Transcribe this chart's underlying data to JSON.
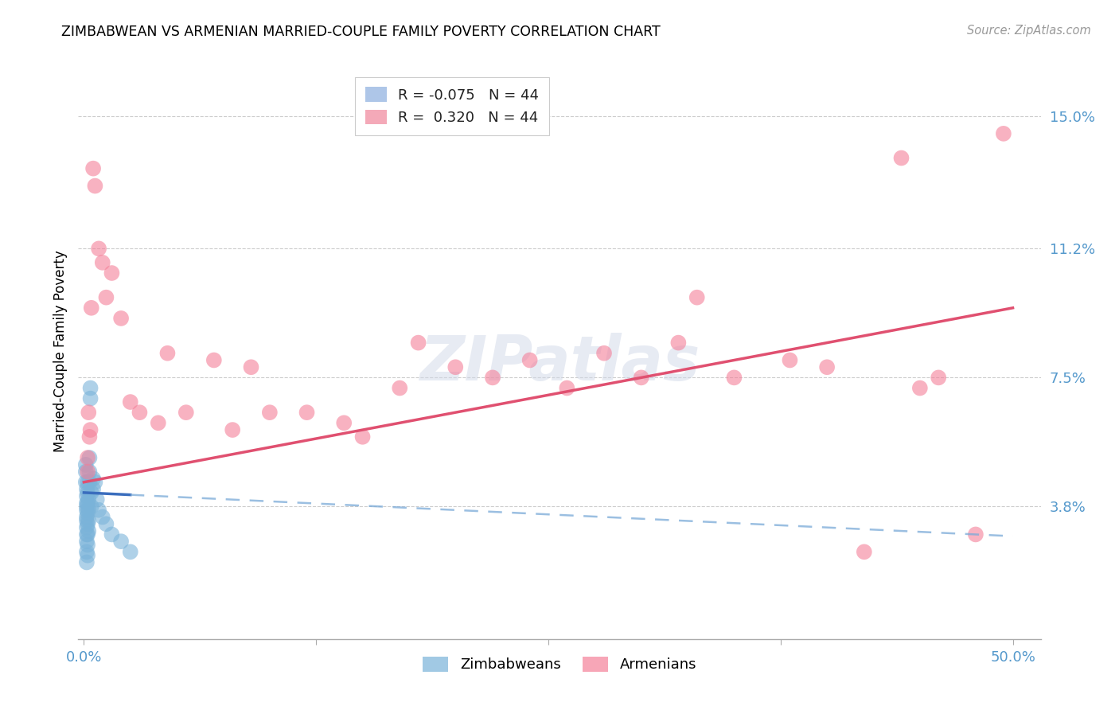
{
  "title": "ZIMBABWEAN VS ARMENIAN MARRIED-COUPLE FAMILY POVERTY CORRELATION CHART",
  "source": "Source: ZipAtlas.com",
  "ylabel_label": "Married-Couple Family Poverty",
  "xlim": [
    0.0,
    50.0
  ],
  "ylim": [
    0.0,
    16.0
  ],
  "ytick_vals": [
    3.8,
    7.5,
    11.2,
    15.0
  ],
  "xtick_vals": [
    0.0,
    12.5,
    25.0,
    37.5,
    50.0
  ],
  "zimbabwean_color": "#7ab3d9",
  "armenian_color": "#f48099",
  "background_color": "#ffffff",
  "zim_scatter": [
    [
      0.1,
      5.0
    ],
    [
      0.1,
      4.8
    ],
    [
      0.1,
      4.5
    ],
    [
      0.15,
      4.3
    ],
    [
      0.15,
      4.1
    ],
    [
      0.15,
      3.9
    ],
    [
      0.15,
      3.8
    ],
    [
      0.15,
      3.7
    ],
    [
      0.15,
      3.5
    ],
    [
      0.15,
      3.4
    ],
    [
      0.15,
      3.2
    ],
    [
      0.15,
      3.0
    ],
    [
      0.15,
      2.8
    ],
    [
      0.15,
      2.5
    ],
    [
      0.15,
      2.2
    ],
    [
      0.2,
      4.5
    ],
    [
      0.2,
      4.2
    ],
    [
      0.2,
      3.9
    ],
    [
      0.2,
      3.6
    ],
    [
      0.2,
      3.3
    ],
    [
      0.2,
      3.0
    ],
    [
      0.2,
      2.7
    ],
    [
      0.2,
      2.4
    ],
    [
      0.25,
      4.0
    ],
    [
      0.25,
      3.7
    ],
    [
      0.25,
      3.4
    ],
    [
      0.25,
      3.1
    ],
    [
      0.3,
      5.2
    ],
    [
      0.3,
      4.8
    ],
    [
      0.3,
      4.5
    ],
    [
      0.35,
      7.2
    ],
    [
      0.35,
      6.9
    ],
    [
      0.4,
      4.2
    ],
    [
      0.4,
      3.8
    ],
    [
      0.5,
      4.6
    ],
    [
      0.5,
      4.3
    ],
    [
      0.6,
      4.5
    ],
    [
      0.7,
      4.0
    ],
    [
      0.8,
      3.7
    ],
    [
      1.0,
      3.5
    ],
    [
      1.2,
      3.3
    ],
    [
      1.5,
      3.0
    ],
    [
      2.0,
      2.8
    ],
    [
      2.5,
      2.5
    ]
  ],
  "arm_scatter": [
    [
      0.2,
      5.2
    ],
    [
      0.2,
      4.8
    ],
    [
      0.25,
      6.5
    ],
    [
      0.3,
      5.8
    ],
    [
      0.35,
      6.0
    ],
    [
      0.4,
      9.5
    ],
    [
      0.5,
      13.5
    ],
    [
      0.6,
      13.0
    ],
    [
      0.8,
      11.2
    ],
    [
      1.0,
      10.8
    ],
    [
      1.2,
      9.8
    ],
    [
      1.5,
      10.5
    ],
    [
      2.0,
      9.2
    ],
    [
      2.5,
      6.8
    ],
    [
      3.0,
      6.5
    ],
    [
      4.0,
      6.2
    ],
    [
      4.5,
      8.2
    ],
    [
      5.5,
      6.5
    ],
    [
      7.0,
      8.0
    ],
    [
      8.0,
      6.0
    ],
    [
      9.0,
      7.8
    ],
    [
      10.0,
      6.5
    ],
    [
      12.0,
      6.5
    ],
    [
      14.0,
      6.2
    ],
    [
      15.0,
      5.8
    ],
    [
      17.0,
      7.2
    ],
    [
      18.0,
      8.5
    ],
    [
      20.0,
      7.8
    ],
    [
      22.0,
      7.5
    ],
    [
      24.0,
      8.0
    ],
    [
      26.0,
      7.2
    ],
    [
      28.0,
      8.2
    ],
    [
      30.0,
      7.5
    ],
    [
      32.0,
      8.5
    ],
    [
      33.0,
      9.8
    ],
    [
      35.0,
      7.5
    ],
    [
      38.0,
      8.0
    ],
    [
      40.0,
      7.8
    ],
    [
      42.0,
      2.5
    ],
    [
      44.0,
      13.8
    ],
    [
      45.0,
      7.2
    ],
    [
      46.0,
      7.5
    ],
    [
      48.0,
      3.0
    ],
    [
      49.5,
      14.5
    ]
  ]
}
